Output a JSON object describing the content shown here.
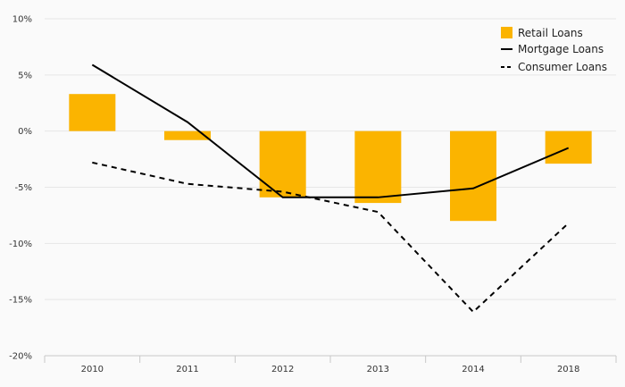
{
  "chart_data": {
    "type": "bar",
    "title": "",
    "xlabel": "",
    "ylabel": "",
    "categories": [
      "2010",
      "2011",
      "2012",
      "2013",
      "2014",
      "2018"
    ],
    "ylim": [
      -20,
      10
    ],
    "y_ticks": [
      10,
      5,
      0,
      -5,
      -10,
      -15,
      -20
    ],
    "y_tick_labels": [
      "10%",
      "5%",
      "0%",
      "-5%",
      "-10%",
      "-15%",
      "-20%"
    ],
    "grid": true,
    "legend_position": "top-right",
    "series": [
      {
        "name": "Retail Loans",
        "kind": "bar",
        "color": "#fbb400",
        "values": [
          3.3,
          -0.8,
          -5.9,
          -6.4,
          -8.0,
          -2.9
        ]
      },
      {
        "name": "Mortgage Loans",
        "kind": "line",
        "style": "solid",
        "color": "#000000",
        "values": [
          5.9,
          0.8,
          -5.9,
          -5.9,
          -5.1,
          -1.5
        ]
      },
      {
        "name": "Consumer Loans",
        "kind": "line",
        "style": "dashed",
        "color": "#000000",
        "values": [
          -2.8,
          -4.7,
          -5.4,
          -7.2,
          -16.1,
          -8.2
        ]
      }
    ]
  }
}
